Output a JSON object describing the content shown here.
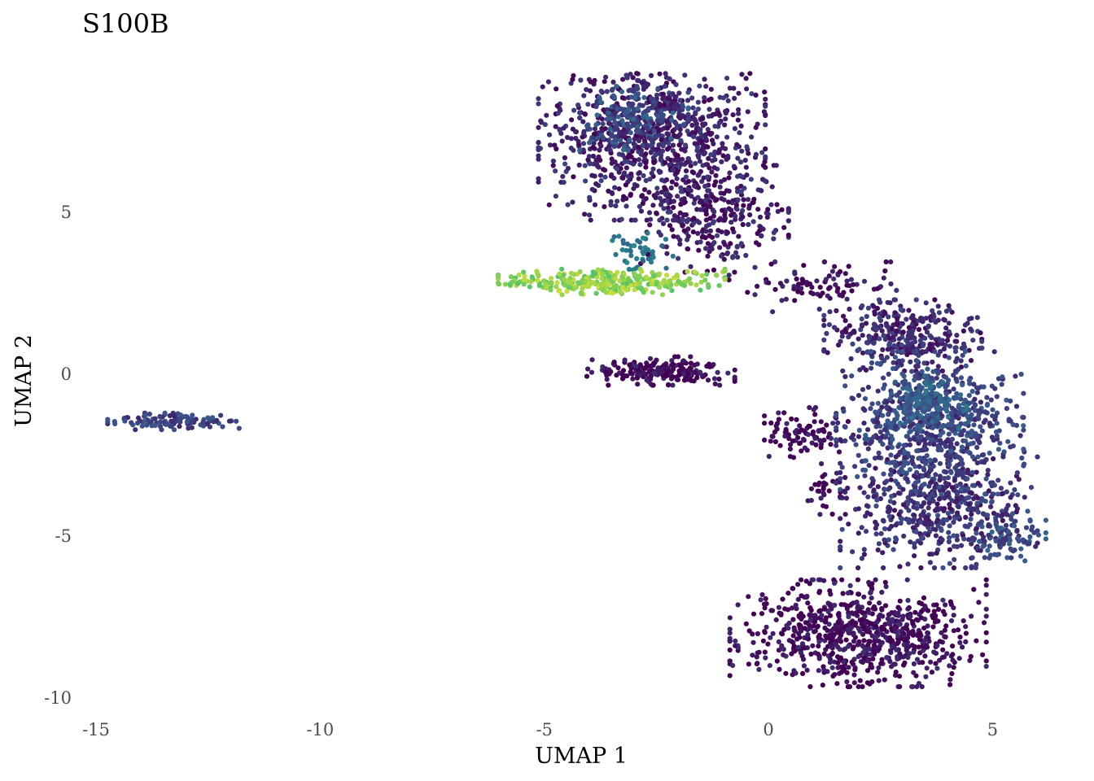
{
  "chart_data": {
    "type": "scatter",
    "title": "S100B",
    "xlabel": "UMAP 1",
    "ylabel": "UMAP 2",
    "xlim": [
      -15.3,
      6.1
    ],
    "ylim": [
      -10.25,
      9.2
    ],
    "x_ticks": [
      -15,
      -10,
      -5,
      0,
      5
    ],
    "y_ticks": [
      5,
      0,
      -5,
      -10
    ],
    "x_tick_labels": [
      "-15",
      "-10",
      "-5",
      "0",
      "5"
    ],
    "y_tick_labels": [
      "5",
      "0",
      "-5",
      "-10"
    ],
    "grid": false,
    "legend": "none",
    "color_scale": "viridis",
    "color_range": [
      "#440154",
      "#3b528b",
      "#21908c",
      "#5dc863",
      "#fde725"
    ],
    "point_color_low": "#440154",
    "point_color_high": "#fde725",
    "clusters": [
      {
        "region": "upper-middle cluster",
        "center": [
          -2.6,
          7.4
        ],
        "spread": [
          1.15,
          1.2
        ],
        "n": 950,
        "expression": 0.1
      },
      {
        "region": "upper-middle cluster hotspot",
        "center": [
          -3.0,
          7.9
        ],
        "spread": [
          0.55,
          0.45
        ],
        "n": 140,
        "expression": 0.25
      },
      {
        "region": "neck",
        "center": [
          -1.2,
          4.8
        ],
        "spread": [
          0.75,
          0.75
        ],
        "n": 260,
        "expression": 0.08
      },
      {
        "region": "high-expression band",
        "center": [
          -3.5,
          2.85
        ],
        "spread": [
          1.15,
          0.18
        ],
        "n": 300,
        "expression": 0.82
      },
      {
        "region": "band top",
        "center": [
          -2.9,
          3.8
        ],
        "spread": [
          0.35,
          0.3
        ],
        "n": 45,
        "expression": 0.4
      },
      {
        "region": "small central cluster",
        "center": [
          -2.4,
          0.1
        ],
        "spread": [
          0.75,
          0.2
        ],
        "n": 190,
        "expression": 0.03
      },
      {
        "region": "left outlier cluster",
        "center": [
          -13.2,
          -1.45
        ],
        "spread": [
          0.7,
          0.12
        ],
        "n": 110,
        "expression": 0.2
      },
      {
        "region": "bridge",
        "center": [
          1.1,
          2.7
        ],
        "spread": [
          0.9,
          0.35
        ],
        "n": 90,
        "expression": 0.05
      },
      {
        "region": "right arc top",
        "center": [
          3.0,
          1.2
        ],
        "spread": [
          0.8,
          0.5
        ],
        "n": 320,
        "expression": 0.12
      },
      {
        "region": "right arc middle",
        "center": [
          3.6,
          -1.5
        ],
        "spread": [
          0.95,
          1.0
        ],
        "n": 650,
        "expression": 0.2
      },
      {
        "region": "right arc hotspot",
        "center": [
          3.6,
          -0.8
        ],
        "spread": [
          0.4,
          0.4
        ],
        "n": 140,
        "expression": 0.3
      },
      {
        "region": "right arc lower",
        "center": [
          3.8,
          -4.0
        ],
        "spread": [
          1.0,
          0.9
        ],
        "n": 550,
        "expression": 0.15
      },
      {
        "region": "right arc tip",
        "center": [
          5.2,
          -5.0
        ],
        "spread": [
          0.45,
          0.35
        ],
        "n": 90,
        "expression": 0.22
      },
      {
        "region": "bottom cluster",
        "center": [
          2.0,
          -8.0
        ],
        "spread": [
          1.3,
          0.75
        ],
        "n": 750,
        "expression": 0.04
      },
      {
        "region": "small right cluster",
        "center": [
          0.9,
          -1.8
        ],
        "spread": [
          0.45,
          0.35
        ],
        "n": 90,
        "expression": 0.03
      },
      {
        "region": "small lower cluster",
        "center": [
          1.3,
          -3.5
        ],
        "spread": [
          0.2,
          0.45
        ],
        "n": 30,
        "expression": 0.02
      }
    ]
  }
}
